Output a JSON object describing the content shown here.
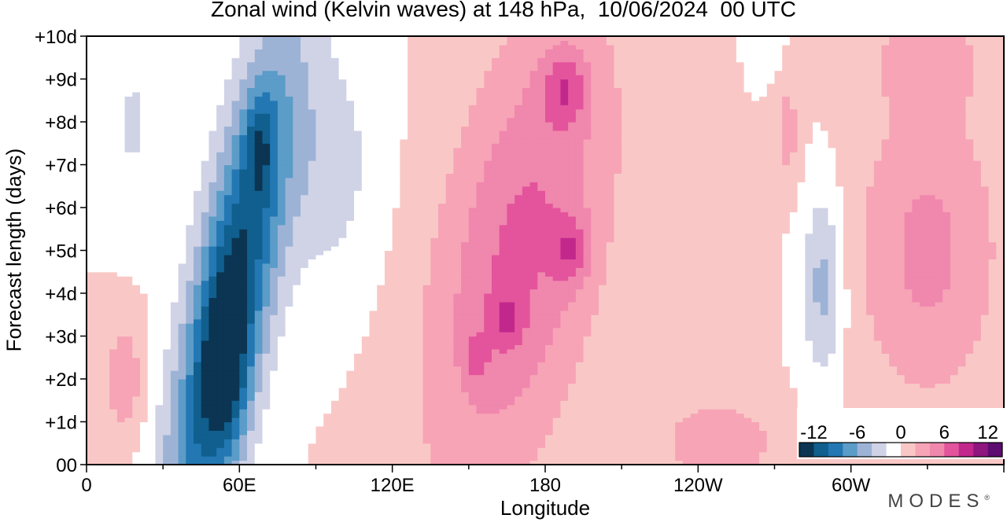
{
  "chart_data": {
    "type": "heatmap",
    "title": "Zonal wind (Kelvin waves) at 148 hPa,  10/06/2024  00 UTC",
    "xlabel": "Longitude",
    "ylabel": "Forecast length (days)",
    "x_ticks": [
      "0",
      "60E",
      "120E",
      "180",
      "120W",
      "60W"
    ],
    "y_ticks": [
      "00",
      "+1d",
      "+2d",
      "+3d",
      "+4d",
      "+5d",
      "+6d",
      "+7d",
      "+8d",
      "+9d",
      "+10d"
    ],
    "xlim": [
      0,
      360
    ],
    "ylim": [
      0,
      10
    ],
    "colorbar": {
      "tick_labels": [
        "-12",
        "-6",
        "0",
        "6",
        "12"
      ],
      "levels": [
        -12,
        -10,
        -8,
        -6,
        -4,
        -2,
        0,
        2,
        4,
        6,
        8,
        10,
        12
      ],
      "colors": [
        "#0b3552",
        "#105f8e",
        "#2378b3",
        "#5b9cc8",
        "#9db3d6",
        "#d0d3e6",
        "#ffffff",
        "#f9c8c6",
        "#f7a4b6",
        "#f087ad",
        "#e3549c",
        "#c2288c",
        "#8e167f",
        "#5d0c6f"
      ]
    },
    "fields": [
      {
        "lon_range": [
          24,
          112
        ],
        "days": [
          0,
          10
        ],
        "min": -14,
        "note": "negative easterly band centred near 45-70E"
      },
      {
        "lon_range": [
          140,
          250
        ],
        "days": [
          0,
          10
        ],
        "max": 9,
        "note": "positive westerly band near 180"
      },
      {
        "lon_range": [
          280,
          300
        ],
        "days": [
          2,
          8
        ],
        "min": -8
      },
      {
        "lon_range": [
          290,
          360
        ],
        "days": [
          0,
          10
        ],
        "max": 6
      }
    ]
  },
  "brand": {
    "name": "MODES",
    "mark": "®"
  }
}
